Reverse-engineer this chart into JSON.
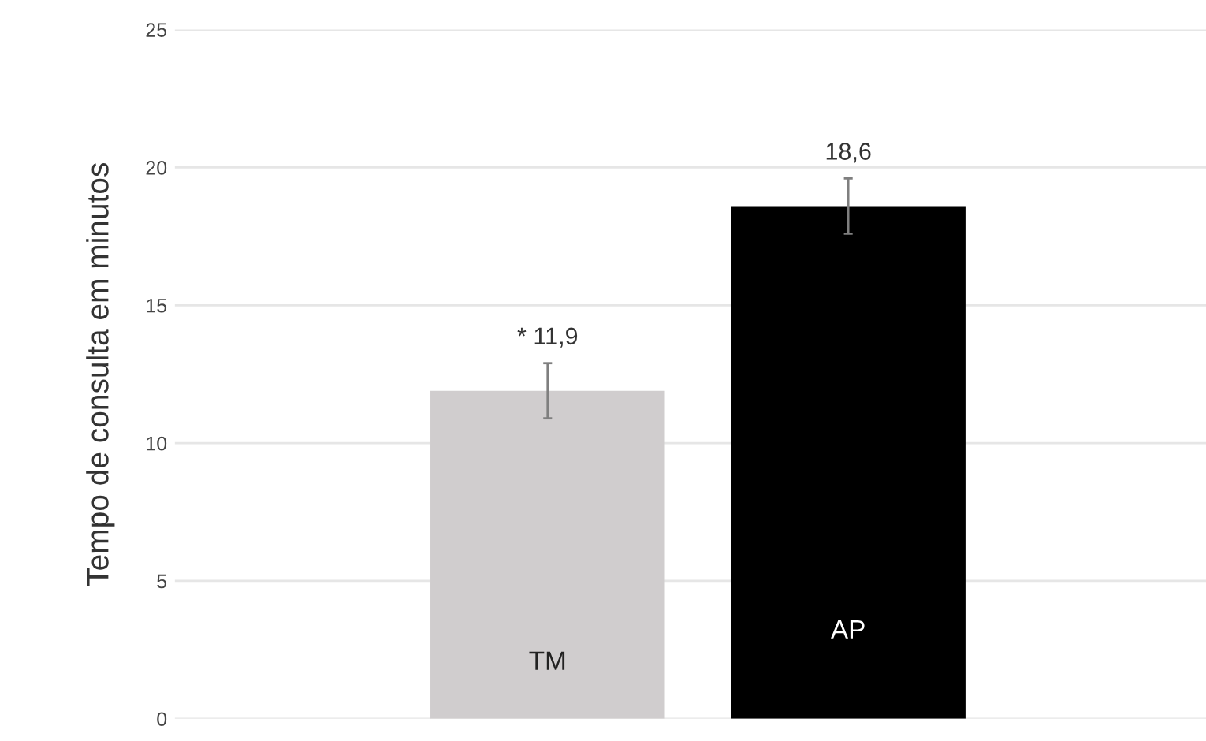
{
  "chart_data": {
    "type": "bar",
    "ylabel": "Tempo de consulta em minutos",
    "categories": [
      "TM",
      "AP"
    ],
    "values": [
      11.9,
      18.6
    ],
    "colors": [
      "#d0cdce",
      "#000000"
    ],
    "errors": [
      1.0,
      1.0
    ],
    "value_labels": [
      "* 11,9",
      "18,6"
    ],
    "ylim": [
      0,
      25
    ],
    "yticks": [
      0,
      5,
      10,
      15,
      20,
      25
    ],
    "grid": "y",
    "tick_labels": "y",
    "legend": false
  }
}
